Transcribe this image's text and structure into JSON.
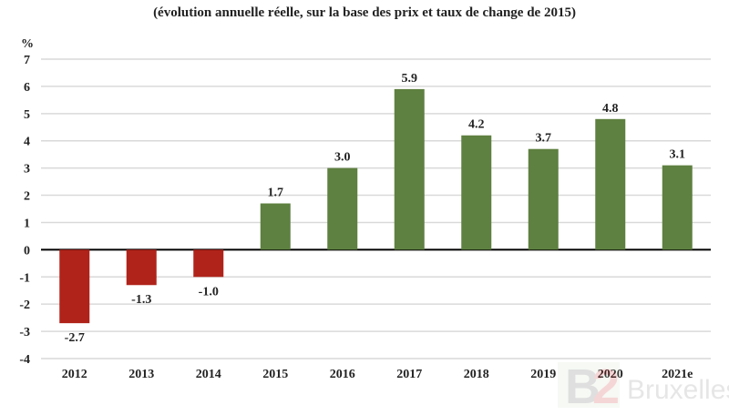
{
  "chart_data": {
    "type": "bar",
    "title": "(évolution annuelle réelle, sur la base des prix et taux de change de 2015)",
    "ylabel": "%",
    "xlabel": "",
    "categories": [
      "2012",
      "2013",
      "2014",
      "2015",
      "2016",
      "2017",
      "2018",
      "2019",
      "2020",
      "2021e"
    ],
    "values": [
      -2.7,
      -1.3,
      -1.0,
      1.7,
      3.0,
      5.9,
      4.2,
      3.7,
      4.8,
      3.1
    ],
    "data_labels": [
      "-2.7",
      "-1.3",
      "-1.0",
      "1.7",
      "3.0",
      "5.9",
      "4.2",
      "3.7",
      "4.8",
      "3.1"
    ],
    "ylim": [
      -4,
      7
    ],
    "yticks": [
      7,
      6,
      5,
      4,
      3,
      2,
      1,
      0,
      -1,
      -2,
      -3,
      -4
    ],
    "grid": true,
    "legend": "none",
    "colors": {
      "positive": "#5e8040",
      "negative": "#b0231a",
      "grid": "#d9d9d9",
      "zero_line": "#000000"
    }
  },
  "watermark": {
    "logo": "B2",
    "text": "Bruxelles"
  }
}
